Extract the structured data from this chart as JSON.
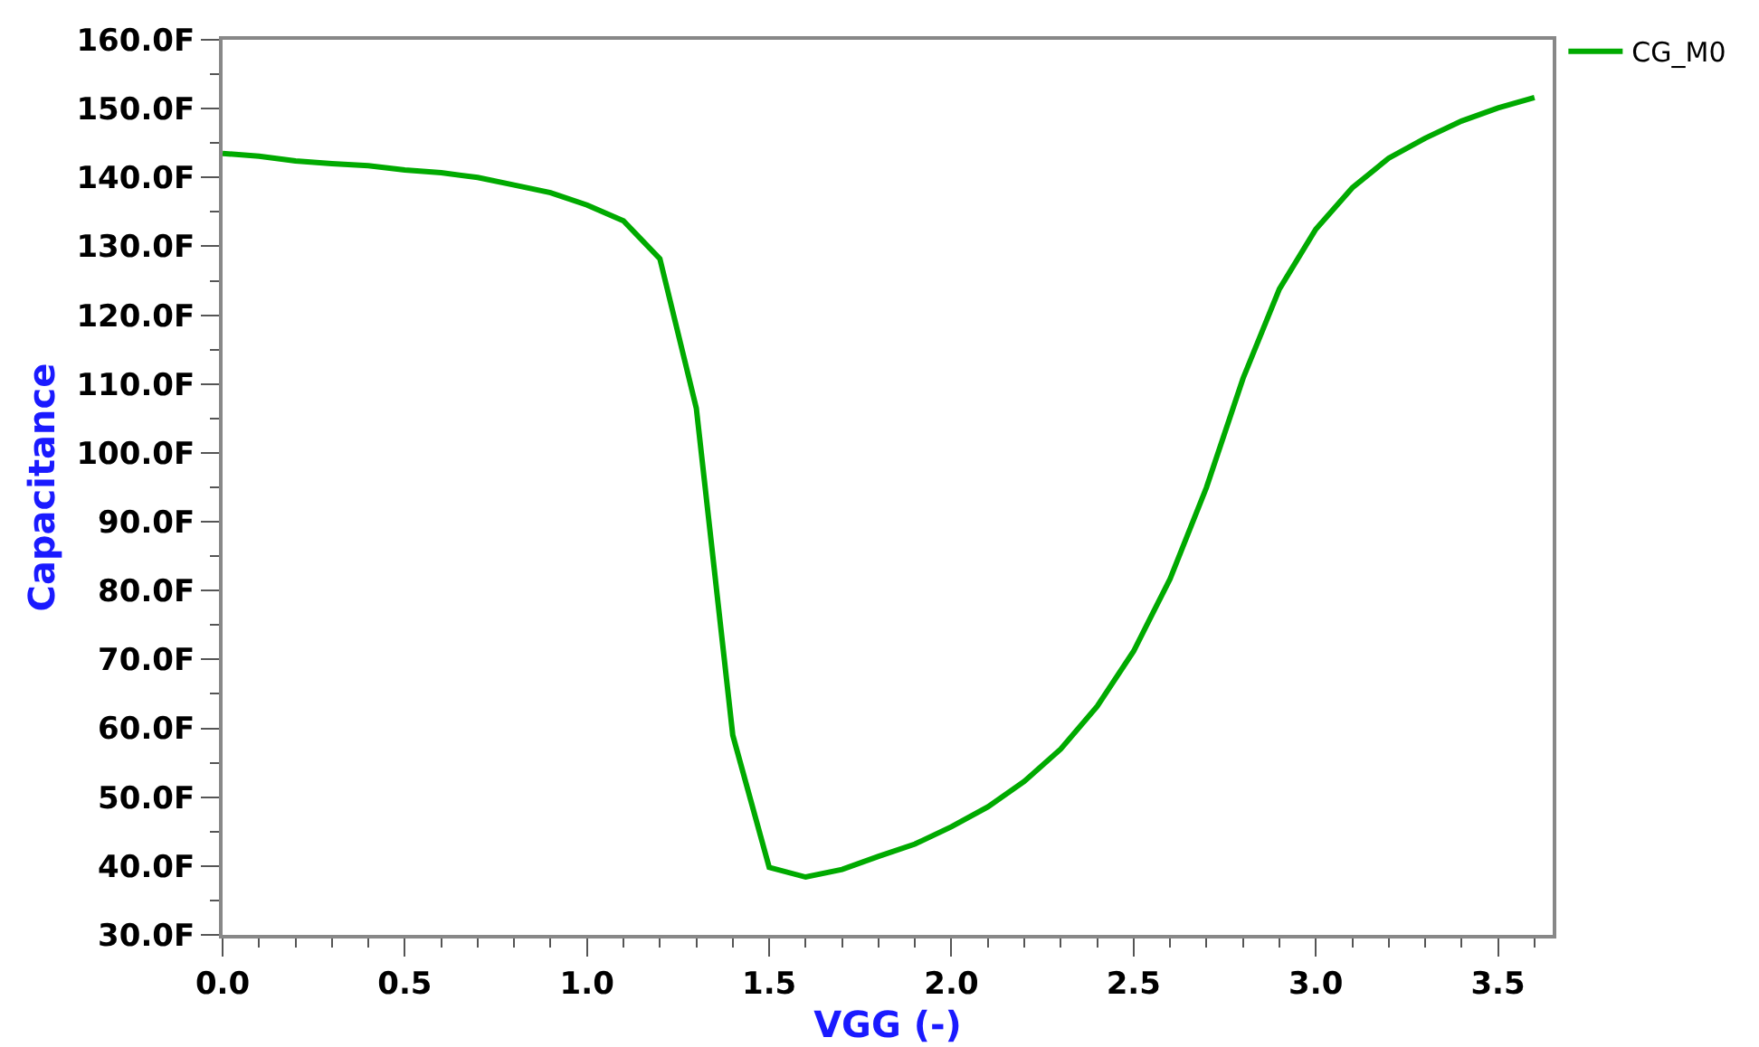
{
  "chart_data": {
    "type": "line",
    "xlabel": "VGG (-)",
    "ylabel": "Capacitance",
    "x": [
      0.0,
      0.1,
      0.2,
      0.3,
      0.4,
      0.5,
      0.6,
      0.7,
      0.8,
      0.9,
      1.0,
      1.1,
      1.2,
      1.3,
      1.4,
      1.5,
      1.6,
      1.7,
      1.8,
      1.9,
      2.0,
      2.1,
      2.2,
      2.3,
      2.4,
      2.5,
      2.6,
      2.7,
      2.8,
      2.9,
      3.0,
      3.1,
      3.2,
      3.3,
      3.4,
      3.5,
      3.6
    ],
    "series": [
      {
        "name": "CG_M0",
        "color": "#00aa00",
        "values": [
          143.5,
          143.1,
          142.4,
          142.0,
          141.7,
          141.1,
          140.7,
          140.0,
          138.9,
          137.8,
          136.0,
          133.7,
          128.2,
          106.5,
          59,
          39.8,
          38.4,
          39.5,
          41.4,
          43.2,
          45.7,
          48.6,
          52.3,
          57.0,
          63.2,
          71.2,
          81.7,
          95.0,
          110.8,
          123.8,
          132.5,
          138.5,
          142.8,
          145.7,
          148.2,
          150.1,
          151.6
        ]
      }
    ],
    "xlim": [
      0,
      3.65
    ],
    "xticks": [
      {
        "value": 0,
        "label": "0.0"
      },
      0.5,
      {
        "value": 1,
        "label": "1.0"
      },
      1.5,
      {
        "value": 2,
        "label": "2.0"
      },
      2.5,
      {
        "value": 3,
        "label": "3.0"
      },
      3.5
    ],
    "ylim": [
      30,
      160
    ],
    "yticks": [
      {
        "value": 30,
        "label": "30.0F"
      },
      {
        "value": 40,
        "label": "40.0F"
      },
      {
        "value": 50,
        "label": "50.0F"
      },
      {
        "value": 60,
        "label": "60.0F"
      },
      {
        "value": 70,
        "label": "70.0F"
      },
      {
        "value": 80,
        "label": "80.0F"
      },
      {
        "value": 90,
        "label": "90.0F"
      },
      {
        "value": 100,
        "label": "100.0F"
      },
      {
        "value": 110,
        "label": "110.0F"
      },
      {
        "value": 120,
        "label": "120.0F"
      },
      {
        "value": 130,
        "label": "130.0F"
      },
      {
        "value": 140,
        "label": "140.0F"
      },
      {
        "value": 150,
        "label": "150.0F"
      },
      {
        "value": 160,
        "label": "160.0F"
      }
    ],
    "grid": false,
    "legend": "top right",
    "marker": "none",
    "line_style": "solid"
  }
}
